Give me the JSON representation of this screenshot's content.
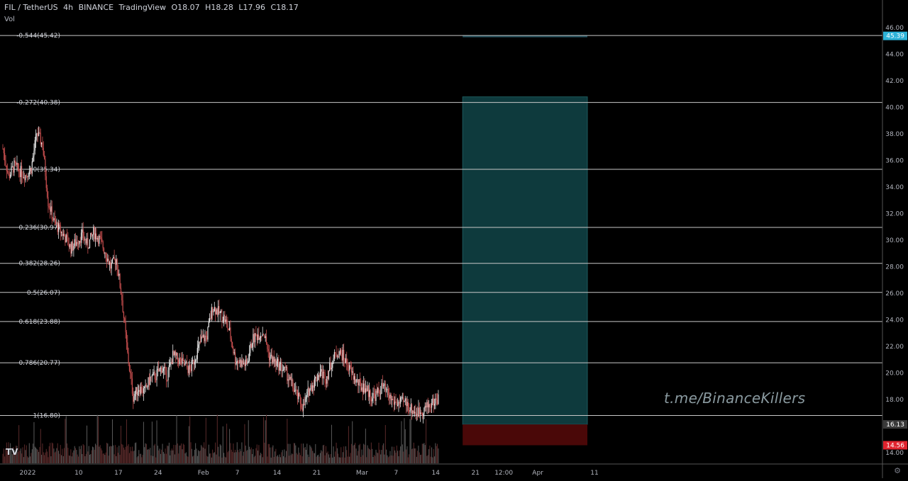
{
  "header": {
    "symbol": "FIL / TetherUS",
    "interval": "4h",
    "exchange": "BINANCE",
    "source": "TradingView",
    "open": "O18.07",
    "high": "H18.28",
    "low": "L17.96",
    "close": "C18.17"
  },
  "volume_label": "Vol",
  "watermark": "t.me/BinanceKillers",
  "logo_text": "TV",
  "colors": {
    "background": "#000000",
    "up_candle": "#e8e8e8",
    "down_candle": "#c94f4f",
    "fib_line": "#c8c8c8",
    "target_zone": "#0e3a3d",
    "stop_zone": "#4a0808",
    "price_tag_blue": "#2db3d8",
    "price_tag_red": "#e0232e",
    "price_tag_grey": "#3a3a3a"
  },
  "chart_data": {
    "type": "candlestick",
    "ylim": [
      13.2,
      46.6
    ],
    "y_ticks": [
      "14.00",
      "16.00",
      "18.00",
      "20.00",
      "22.00",
      "24.00",
      "26.00",
      "28.00",
      "30.00",
      "32.00",
      "34.00",
      "36.00",
      "38.00",
      "40.00",
      "42.00",
      "44.00",
      "46.00"
    ],
    "x_ticks": [
      {
        "label": "2022",
        "day": 0
      },
      {
        "label": "10",
        "day": 9
      },
      {
        "label": "17",
        "day": 16
      },
      {
        "label": "24",
        "day": 23
      },
      {
        "label": "Feb",
        "day": 31
      },
      {
        "label": "7",
        "day": 37
      },
      {
        "label": "14",
        "day": 44
      },
      {
        "label": "21",
        "day": 51
      },
      {
        "label": "Mar",
        "day": 59
      },
      {
        "label": "7",
        "day": 65
      },
      {
        "label": "14",
        "day": 72
      },
      {
        "label": "21",
        "day": 79
      },
      {
        "label": "12:00",
        "day": 84
      },
      {
        "label": "Apr",
        "day": 90
      },
      {
        "label": "11",
        "day": 100
      }
    ],
    "fib_levels": [
      {
        "label": "-0.544(45.42)",
        "price": 45.42
      },
      {
        "label": "-0.272(40.38)",
        "price": 40.38
      },
      {
        "label": "0(35.34)",
        "price": 35.34
      },
      {
        "label": "0.236(30.97)",
        "price": 30.97
      },
      {
        "label": "0.382(28.26)",
        "price": 28.26
      },
      {
        "label": "0.5(26.07)",
        "price": 26.07
      },
      {
        "label": "0.618(23.88)",
        "price": 23.88
      },
      {
        "label": "0.786(20.77)",
        "price": 20.77
      },
      {
        "label": "1(16.80)",
        "price": 16.8
      }
    ],
    "price_tags": [
      {
        "label": "45.39",
        "price": 45.39,
        "kind": "blue"
      },
      {
        "label": "16.13",
        "price": 16.13,
        "kind": "grey"
      },
      {
        "label": "14.56",
        "price": 14.56,
        "kind": "red"
      }
    ],
    "position": {
      "entry": 16.13,
      "target": 40.8,
      "target_far": 45.39,
      "stop": 14.56,
      "start_day": 78,
      "end_day": 100
    },
    "price_path": [
      [
        0,
        36.9
      ],
      [
        1,
        34.8
      ],
      [
        2,
        35.6
      ],
      [
        3,
        35.2
      ],
      [
        4,
        34.9
      ],
      [
        5,
        35.4
      ],
      [
        6,
        38.1
      ],
      [
        7,
        37.2
      ],
      [
        8,
        32.9
      ],
      [
        9,
        31.4
      ],
      [
        10,
        30.8
      ],
      [
        11,
        30.2
      ],
      [
        12,
        29.4
      ],
      [
        13,
        29.9
      ],
      [
        14,
        30.4
      ],
      [
        15,
        29.6
      ],
      [
        16,
        30.6
      ],
      [
        17,
        30.1
      ],
      [
        18,
        29.2
      ],
      [
        19,
        28.0
      ],
      [
        20,
        28.6
      ],
      [
        21,
        25.6
      ],
      [
        22,
        21.4
      ],
      [
        23,
        18.2
      ],
      [
        24,
        18.9
      ],
      [
        25,
        18.6
      ],
      [
        26,
        19.6
      ],
      [
        27,
        19.8
      ],
      [
        28,
        20.4
      ],
      [
        29,
        19.8
      ],
      [
        30,
        21.3
      ],
      [
        31,
        21.0
      ],
      [
        32,
        20.6
      ],
      [
        33,
        20.2
      ],
      [
        34,
        21.3
      ],
      [
        35,
        22.5
      ],
      [
        36,
        22.8
      ],
      [
        37,
        25.0
      ],
      [
        38,
        24.6
      ],
      [
        39,
        24.2
      ],
      [
        40,
        23.1
      ],
      [
        41,
        21.0
      ],
      [
        42,
        20.8
      ],
      [
        43,
        20.6
      ],
      [
        44,
        22.5
      ],
      [
        45,
        22.9
      ],
      [
        46,
        23.1
      ],
      [
        47,
        21.3
      ],
      [
        48,
        20.8
      ],
      [
        49,
        20.5
      ],
      [
        50,
        20.0
      ],
      [
        51,
        19.1
      ],
      [
        52,
        18.2
      ],
      [
        53,
        17.4
      ],
      [
        54,
        18.7
      ],
      [
        55,
        19.4
      ],
      [
        56,
        20.1
      ],
      [
        57,
        19.6
      ],
      [
        58,
        20.8
      ],
      [
        59,
        21.6
      ],
      [
        60,
        21.3
      ],
      [
        61,
        20.4
      ],
      [
        62,
        19.6
      ],
      [
        63,
        19.0
      ],
      [
        64,
        18.9
      ],
      [
        65,
        18.2
      ],
      [
        66,
        18.4
      ],
      [
        67,
        19.0
      ],
      [
        68,
        18.3
      ],
      [
        69,
        17.8
      ],
      [
        70,
        17.7
      ],
      [
        71,
        17.8
      ],
      [
        72,
        17.3
      ],
      [
        73,
        17.0
      ],
      [
        74,
        17.2
      ],
      [
        75,
        17.5
      ],
      [
        76,
        17.8
      ],
      [
        77,
        18.17
      ]
    ]
  }
}
